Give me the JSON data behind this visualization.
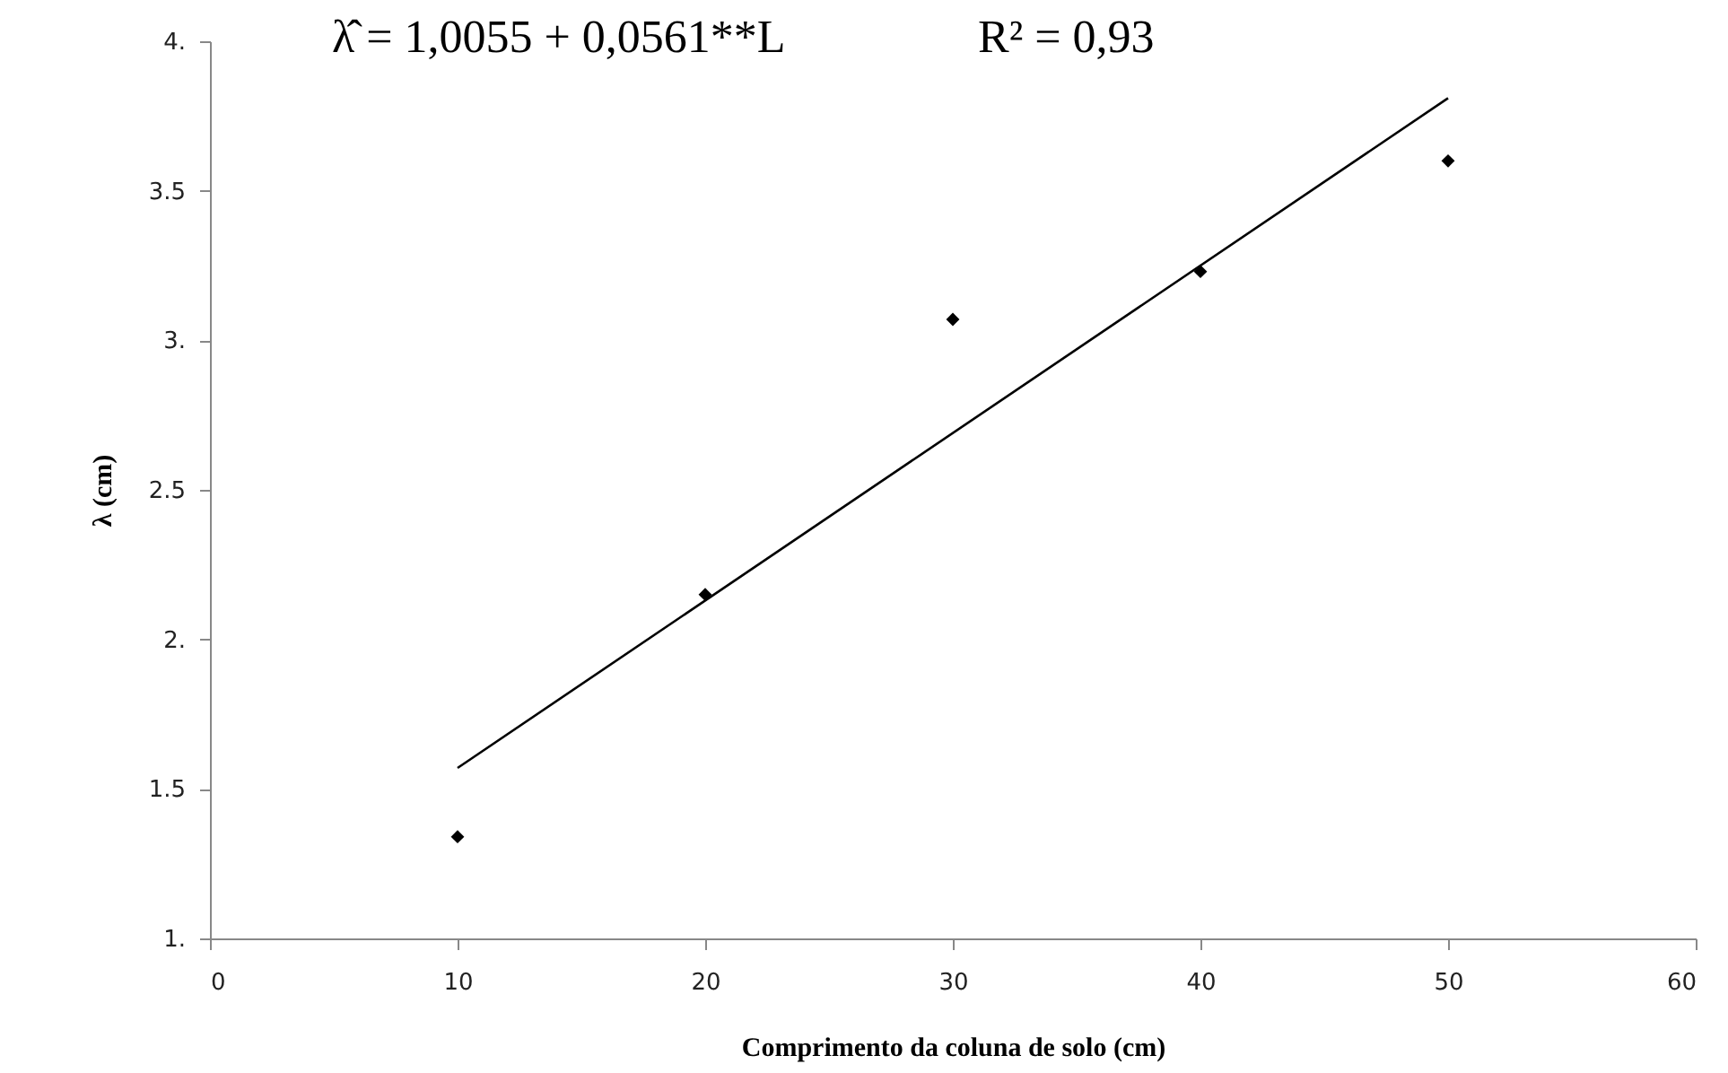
{
  "chart_data": {
    "type": "scatter",
    "xlabel": "Comprimento da coluna de solo (cm)",
    "ylabel": "λ (cm)",
    "x": [
      10,
      20,
      30,
      40,
      50
    ],
    "series": [
      {
        "color": "#000000",
        "marker": "diamond",
        "values": [
          1.34,
          2.15,
          3.07,
          3.23,
          3.6
        ]
      },
      {
        "type": "line",
        "color": "#000000",
        "marker": "none",
        "line_style": "solid",
        "x": [
          10,
          50
        ],
        "values": [
          1.57,
          3.81
        ]
      }
    ],
    "xlim": [
      0,
      60
    ],
    "xticks": [
      0,
      10,
      20,
      30,
      40,
      50,
      60
    ],
    "ylim": [
      1,
      4
    ],
    "yticks": [
      {
        "value": 1,
        "label": "1."
      },
      1.5,
      {
        "value": 2,
        "label": "2."
      },
      2.5,
      {
        "value": 3,
        "label": "3."
      },
      3.5,
      {
        "value": 4,
        "label": "4."
      }
    ],
    "annotations": [
      "λ̂ = 1,0055 + 0,0561**L",
      "R² = 0,93"
    ],
    "grid": false
  }
}
